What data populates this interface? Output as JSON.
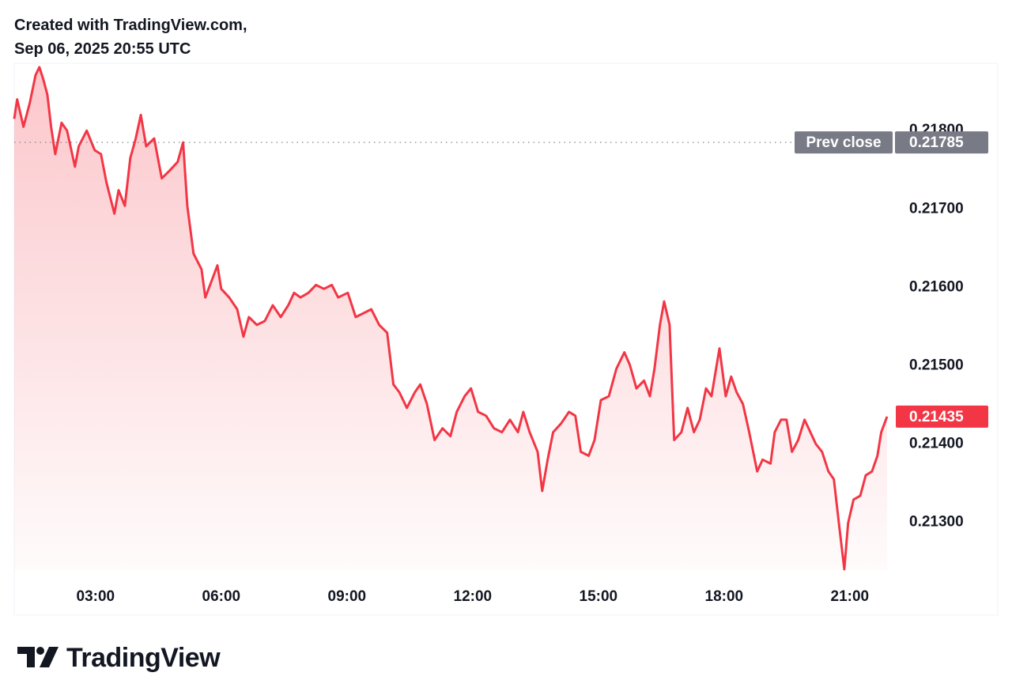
{
  "chart_data": {
    "type": "line",
    "header": [
      "Created with TradingView.com,",
      "Sep 06, 2025 20:55 UTC"
    ],
    "brand": "TradingView",
    "series": [
      {
        "color": "#f23645",
        "x": [
          1.06,
          1.13,
          1.28,
          1.43,
          1.57,
          1.66,
          1.75,
          1.85,
          1.94,
          2.04,
          2.19,
          2.32,
          2.51,
          2.6,
          2.79,
          2.98,
          3.13,
          3.26,
          3.45,
          3.55,
          3.7,
          3.83,
          3.96,
          4.08,
          4.21,
          4.4,
          4.58,
          4.77,
          4.96,
          5.09,
          5.19,
          5.34,
          5.53,
          5.62,
          5.77,
          5.91,
          6.0,
          6.19,
          6.38,
          6.53,
          6.66,
          6.85,
          7.04,
          7.23,
          7.42,
          7.6,
          7.74,
          7.89,
          8.08,
          8.26,
          8.45,
          8.64,
          8.79,
          9.02,
          9.21,
          9.4,
          9.58,
          9.77,
          9.96,
          10.11,
          10.25,
          10.43,
          10.62,
          10.75,
          10.91,
          11.09,
          11.28,
          11.47,
          11.62,
          11.81,
          11.96,
          12.13,
          12.32,
          12.51,
          12.7,
          12.89,
          13.08,
          13.21,
          13.36,
          13.55,
          13.66,
          13.79,
          13.92,
          14.11,
          14.3,
          14.45,
          14.58,
          14.77,
          14.91,
          15.06,
          15.25,
          15.43,
          15.62,
          15.75,
          15.91,
          16.09,
          16.23,
          16.34,
          16.47,
          16.57,
          16.7,
          16.81,
          16.98,
          17.13,
          17.28,
          17.42,
          17.57,
          17.7,
          17.89,
          18.04,
          18.17,
          18.3,
          18.45,
          18.6,
          18.79,
          18.92,
          19.11,
          19.21,
          19.36,
          19.49,
          19.62,
          19.77,
          19.92,
          20.06,
          20.19,
          20.34,
          20.49,
          20.62,
          20.75,
          20.87,
          20.96,
          21.09,
          21.25,
          21.38,
          21.53,
          21.66,
          21.75,
          21.89
        ],
        "values": [
          0.21815,
          0.2184,
          0.21805,
          0.21835,
          0.21871,
          0.21881,
          0.21866,
          0.21846,
          0.21805,
          0.2177,
          0.2181,
          0.218,
          0.21754,
          0.2178,
          0.218,
          0.21775,
          0.2177,
          0.21734,
          0.21694,
          0.21724,
          0.21704,
          0.21765,
          0.2179,
          0.2182,
          0.2178,
          0.2179,
          0.21739,
          0.21749,
          0.2176,
          0.21785,
          0.21704,
          0.21643,
          0.21623,
          0.21587,
          0.21608,
          0.21628,
          0.21598,
          0.21587,
          0.21572,
          0.21537,
          0.21562,
          0.21552,
          0.21557,
          0.21577,
          0.21562,
          0.21577,
          0.21593,
          0.21587,
          0.21593,
          0.21603,
          0.21598,
          0.21603,
          0.21587,
          0.21593,
          0.21562,
          0.21567,
          0.21572,
          0.21552,
          0.21542,
          0.21476,
          0.21466,
          0.21446,
          0.21466,
          0.21476,
          0.21451,
          0.21405,
          0.2142,
          0.2141,
          0.21441,
          0.21461,
          0.21471,
          0.21441,
          0.21436,
          0.2142,
          0.21415,
          0.21431,
          0.21415,
          0.21441,
          0.21415,
          0.2139,
          0.2134,
          0.2138,
          0.21415,
          0.21426,
          0.21441,
          0.21436,
          0.2139,
          0.21385,
          0.21405,
          0.21456,
          0.21461,
          0.21496,
          0.21517,
          0.21501,
          0.21471,
          0.21481,
          0.21461,
          0.21496,
          0.21552,
          0.21582,
          0.21552,
          0.21405,
          0.21415,
          0.21446,
          0.21415,
          0.21431,
          0.21471,
          0.21461,
          0.21522,
          0.21461,
          0.21486,
          0.21466,
          0.21451,
          0.21415,
          0.21365,
          0.2138,
          0.21375,
          0.21415,
          0.21431,
          0.21431,
          0.2139,
          0.21405,
          0.21431,
          0.21415,
          0.214,
          0.2139,
          0.21365,
          0.21355,
          0.21294,
          0.2124,
          0.21299,
          0.21329,
          0.21334,
          0.2136,
          0.21365,
          0.21385,
          0.21415,
          0.21435
        ]
      }
    ],
    "last_price_label": "0.21435",
    "prev_close": {
      "label": "Prev close",
      "value": 0.21785,
      "value_label": "0.21785"
    },
    "xlim": [
      1.06,
      22.23
    ],
    "xticks": [
      {
        "value": 3,
        "label": "03:00"
      },
      {
        "value": 6,
        "label": "06:00"
      },
      {
        "value": 9,
        "label": "09:00"
      },
      {
        "value": 12,
        "label": "12:00"
      },
      {
        "value": 15,
        "label": "15:00"
      },
      {
        "value": 18,
        "label": "18:00"
      },
      {
        "value": 21,
        "label": "21:00"
      }
    ],
    "ylim": [
      0.21238,
      0.21886
    ],
    "yticks": [
      {
        "value": 0.213,
        "label": "0.21300"
      },
      {
        "value": 0.214,
        "label": "0.21400"
      },
      {
        "value": 0.215,
        "label": "0.21500"
      },
      {
        "value": 0.216,
        "label": "0.21600"
      },
      {
        "value": 0.217,
        "label": "0.21700"
      },
      {
        "value": 0.218,
        "label": "0.21800"
      }
    ]
  }
}
